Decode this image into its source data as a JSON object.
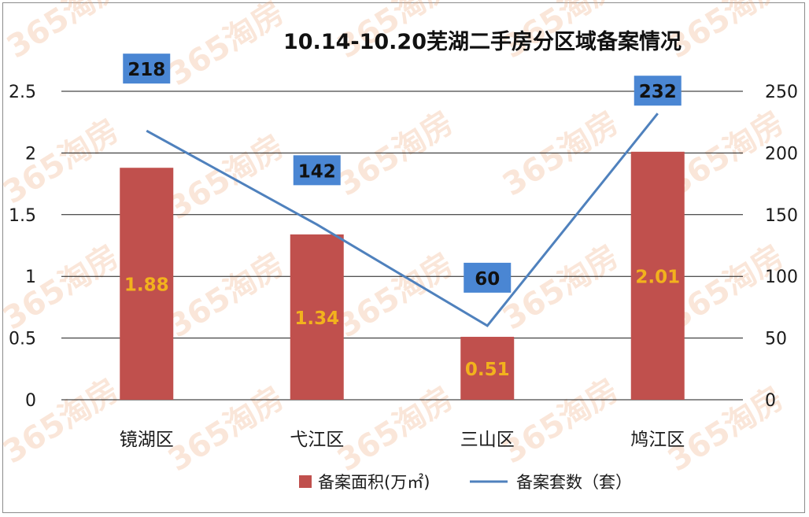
{
  "watermark": "365淘房",
  "colors": {
    "bar": "#c0504d",
    "line": "#4f81bd",
    "line_label_bg": "#4a86d3",
    "bar_label": "#f2b21d",
    "grid": "#1a1a1a"
  },
  "chart_data": {
    "type": "bar",
    "title": "10.14-10.20芜湖二手房分区域备案情况",
    "categories": [
      "镜湖区",
      "弋江区",
      "三山区",
      "鸠江区"
    ],
    "series": [
      {
        "name": "备案面积(万㎡)",
        "type": "bar",
        "axis": "left",
        "values": [
          1.88,
          1.34,
          0.51,
          2.01
        ],
        "labels": [
          "1.88",
          "1.34",
          "0.51",
          "2.01"
        ]
      },
      {
        "name": "备案套数（套）",
        "type": "line",
        "axis": "right",
        "values": [
          218,
          142,
          60,
          232
        ],
        "labels": [
          "218",
          "142",
          "60",
          "232"
        ]
      }
    ],
    "y_left": {
      "range": [
        0,
        2.5
      ],
      "ticks": [
        "0",
        "0.5",
        "1",
        "1.5",
        "2",
        "2.5"
      ]
    },
    "y_right": {
      "range": [
        0,
        250
      ],
      "ticks": [
        "0",
        "50",
        "100",
        "150",
        "200",
        "250"
      ]
    },
    "grid": true,
    "legend_position": "bottom"
  }
}
